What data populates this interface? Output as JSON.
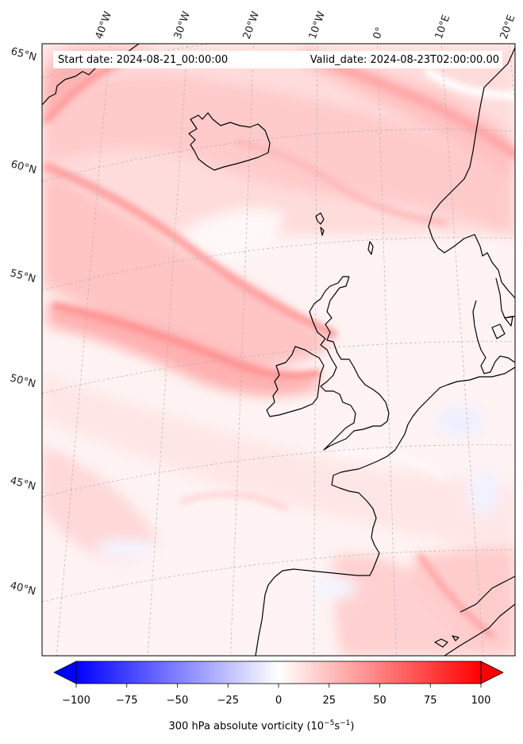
{
  "header": {
    "start_date": "Start date: 2024-08-21_00:00:00",
    "valid_date": "Valid_date: 2024-08-23T02:00:00.00"
  },
  "longitude_labels": [
    "40°W",
    "30°W",
    "20°W",
    "10°W",
    "0°",
    "10°E",
    "20°E"
  ],
  "latitude_labels": [
    "65°N",
    "60°N",
    "55°N",
    "50°N",
    "45°N",
    "40°N"
  ],
  "colorbar": {
    "min": -100,
    "max": 100,
    "ticks": [
      "−100",
      "−75",
      "−50",
      "−25",
      "0",
      "25",
      "50",
      "75",
      "100"
    ],
    "label_prefix": "300 hPa absolute vorticity (10",
    "label_exp1": "−5",
    "label_mid": "s",
    "label_exp2": "−1",
    "label_suffix": ")",
    "low_color": "#0000ff",
    "mid_color": "#ffffff",
    "high_color": "#ff0000"
  },
  "map": {
    "field": "300 hPa absolute vorticity",
    "coastline_color": "#000000",
    "gridline_color": "#b0b0b0"
  }
}
